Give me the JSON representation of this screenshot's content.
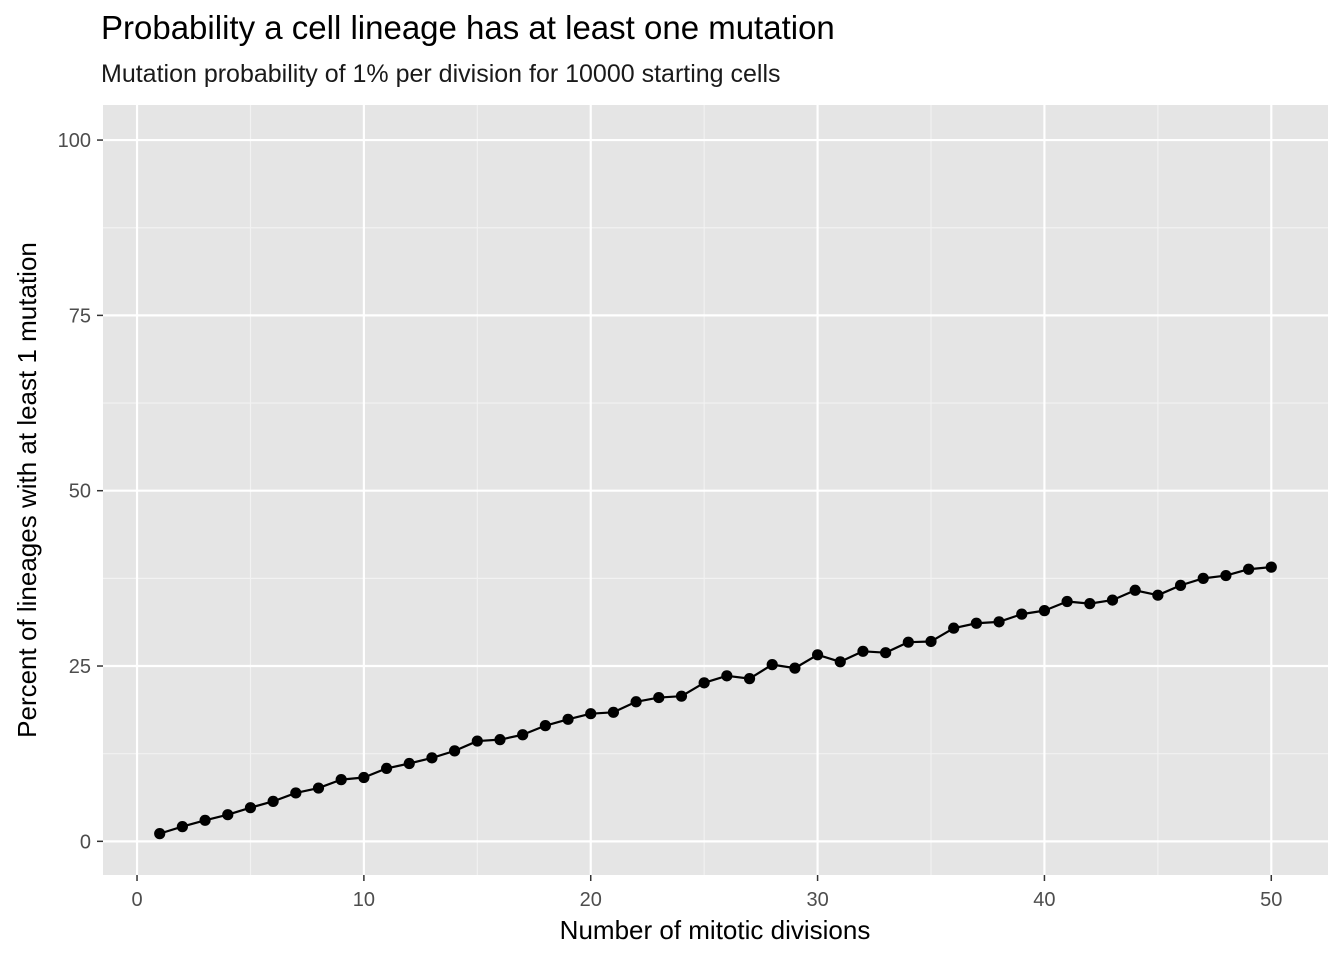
{
  "chart_data": {
    "type": "line",
    "title": "Probability a cell lineage has at least one mutation",
    "subtitle": "Mutation probability of 1% per division for 10000 starting cells",
    "xlabel": "Number of mitotic divisions",
    "ylabel": "Percent of lineages with at least 1 mutation",
    "xlim": [
      -1.5,
      52.5
    ],
    "ylim": [
      -4.8,
      105
    ],
    "x_ticks": [
      0,
      10,
      20,
      30,
      40,
      50
    ],
    "y_ticks": [
      0,
      25,
      50,
      75,
      100
    ],
    "x_tick_labels": [
      "0",
      "10",
      "20",
      "30",
      "40",
      "50"
    ],
    "y_tick_labels": [
      "0",
      "25",
      "50",
      "75",
      "100"
    ],
    "grid": true,
    "markers": true,
    "x": [
      1,
      2,
      3,
      4,
      5,
      6,
      7,
      8,
      9,
      10,
      11,
      12,
      13,
      14,
      15,
      16,
      17,
      18,
      19,
      20,
      21,
      22,
      23,
      24,
      25,
      26,
      27,
      28,
      29,
      30,
      31,
      32,
      33,
      34,
      35,
      36,
      37,
      38,
      39,
      40,
      41,
      42,
      43,
      44,
      45,
      46,
      47,
      48,
      49,
      50
    ],
    "series": [
      {
        "values": [
          1.1,
          2.1,
          3.0,
          3.8,
          4.8,
          5.7,
          6.9,
          7.6,
          8.8,
          9.1,
          10.4,
          11.1,
          11.9,
          12.9,
          14.3,
          14.5,
          15.2,
          16.5,
          17.4,
          18.2,
          18.4,
          19.9,
          20.5,
          20.7,
          22.6,
          23.6,
          23.2,
          25.2,
          24.7,
          26.6,
          25.6,
          27.1,
          26.9,
          28.4,
          28.5,
          30.4,
          31.1,
          31.3,
          32.4,
          32.9,
          34.2,
          33.9,
          34.4,
          35.8,
          35.1,
          36.5,
          37.5,
          37.9,
          38.8,
          39.1
        ],
        "color": "#000000"
      }
    ],
    "colors": {
      "panel": "#e5e5e5",
      "grid_major": "#ffffff",
      "grid_minor": "#f2f2f2",
      "tick": "#333333",
      "line": "#000000"
    }
  }
}
